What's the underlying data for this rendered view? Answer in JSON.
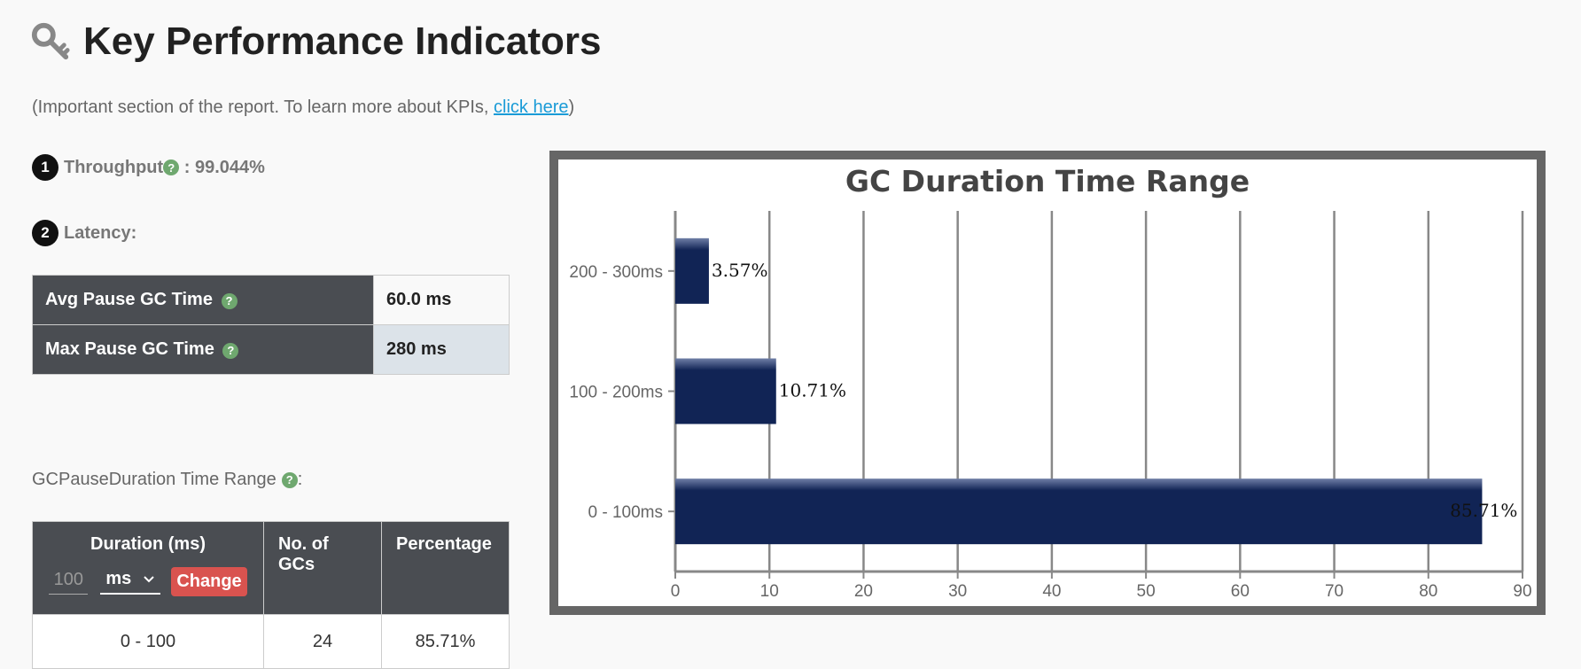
{
  "header": {
    "title": "Key Performance Indicators",
    "subtitle_prefix": "(Important section of the report. To learn more about KPIs, ",
    "subtitle_link": "click here",
    "subtitle_suffix": ")"
  },
  "throughput": {
    "index": "1",
    "label": "Throughput",
    "separator": " : ",
    "value": "99.044%"
  },
  "latency": {
    "index": "2",
    "label": "Latency:",
    "rows": [
      {
        "key": "Avg Pause GC Time",
        "value": "60.0 ms"
      },
      {
        "key": "Max Pause GC Time",
        "value": "280 ms"
      }
    ]
  },
  "pause_range": {
    "label": "GCPauseDuration Time Range",
    "suffix": ":",
    "headers": {
      "duration": "Duration (ms)",
      "count": "No. of GCs",
      "percentage": "Percentage"
    },
    "controls": {
      "placeholder": "100",
      "unit": "ms",
      "button": "Change"
    },
    "rows": [
      {
        "duration": "0 - 100",
        "count": "24",
        "percentage": "85.71%"
      }
    ]
  },
  "chart_data": {
    "type": "bar",
    "orientation": "horizontal",
    "title": "GC Duration Time Range",
    "categories": [
      "200 - 300ms",
      "100 - 200ms",
      "0 - 100ms"
    ],
    "values": [
      3.57,
      10.71,
      85.71
    ],
    "data_labels": [
      "3.57%",
      "10.71%",
      "85.71%"
    ],
    "xlim": [
      0,
      90
    ],
    "xticks": [
      "0",
      "10",
      "20",
      "30",
      "40",
      "50",
      "60",
      "70",
      "80",
      "90"
    ],
    "grid": "vertical",
    "bar_color": "#112455",
    "frame_color": "#666666"
  }
}
